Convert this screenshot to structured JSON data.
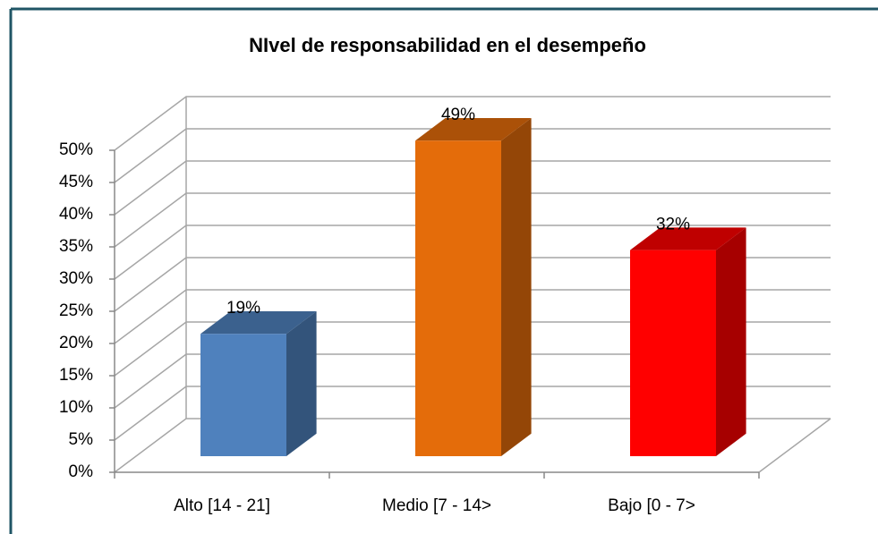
{
  "chart_data": {
    "type": "bar3d",
    "title": "NIvel de responsabilidad  en el desempeño",
    "categories": [
      "Alto [14 - 21]",
      "Medio [7 - 14>",
      "Bajo [0 - 7>"
    ],
    "values": [
      19,
      49,
      32
    ],
    "value_labels": [
      "19%",
      "49%",
      "32%"
    ],
    "colors": [
      "#4f81bd",
      "#e46c0a",
      "#ff0000"
    ],
    "ylim": [
      0,
      50
    ],
    "yticks": [
      {
        "value": 0,
        "label": "0%"
      },
      {
        "value": 5,
        "label": "5%"
      },
      {
        "value": 10,
        "label": "10%"
      },
      {
        "value": 15,
        "label": "15%"
      },
      {
        "value": 20,
        "label": "20%"
      },
      {
        "value": 25,
        "label": "25%"
      },
      {
        "value": 30,
        "label": "30%"
      },
      {
        "value": 35,
        "label": "35%"
      },
      {
        "value": 40,
        "label": "40%"
      },
      {
        "value": 45,
        "label": "45%"
      },
      {
        "value": 50,
        "label": "50%"
      }
    ],
    "grid": true
  }
}
